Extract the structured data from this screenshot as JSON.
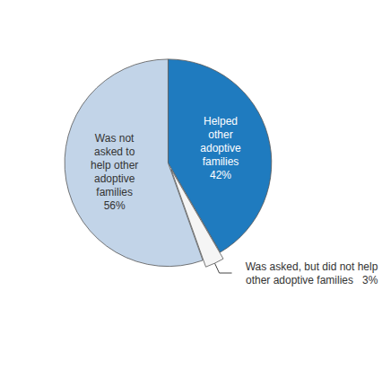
{
  "chart_data": {
    "type": "pie",
    "values": [
      42,
      3,
      56
    ],
    "value_labels": [
      "Helped\nother\nadoptive\nfamilies\n42%",
      "Was asked, but did not help\nother adoptive families   3%",
      "Was not\nasked to\nhelp other\nadoptive\nfamilies\n56%"
    ],
    "colors": [
      "#1f7bbf",
      "#f5f5f5",
      "#c2d4e8"
    ],
    "data_labels": true,
    "legend": false
  }
}
